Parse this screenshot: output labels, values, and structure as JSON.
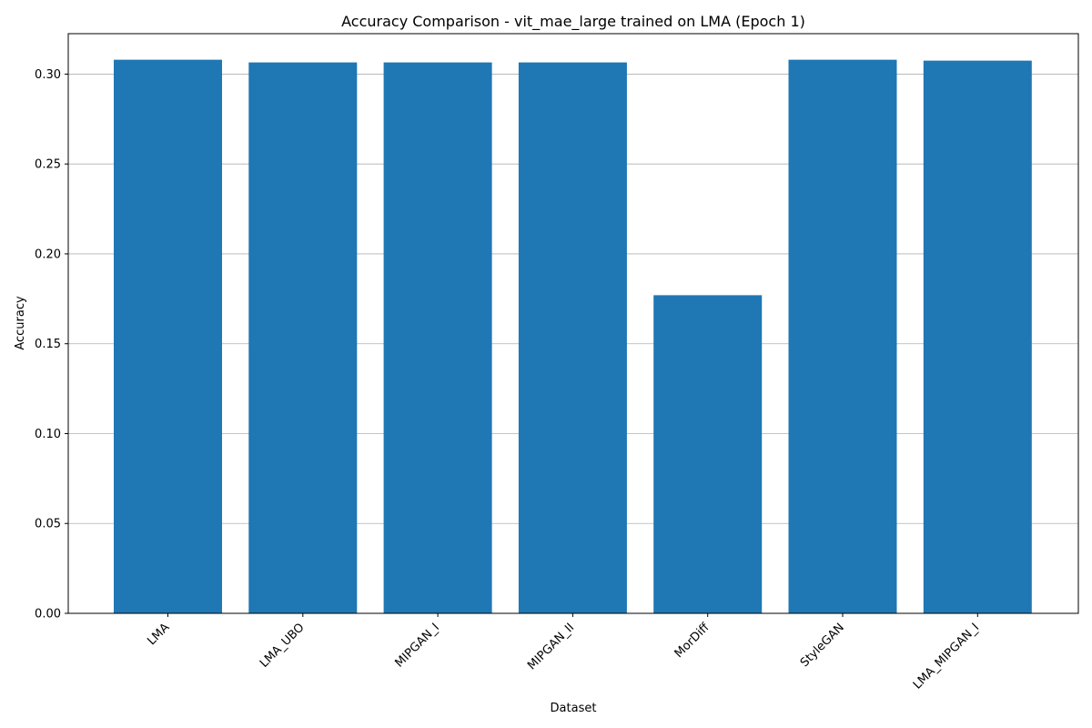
{
  "chart_data": {
    "type": "bar",
    "title": "Accuracy Comparison - vit_mae_large trained on LMA (Epoch 1)",
    "xlabel": "Dataset",
    "ylabel": "Accuracy",
    "categories": [
      "LMA",
      "LMA_UBO",
      "MIPGAN_I",
      "MIPGAN_II",
      "MorDiff",
      "StyleGAN",
      "LMA_MIPGAN_I"
    ],
    "values": [
      0.308,
      0.3065,
      0.3065,
      0.3065,
      0.177,
      0.308,
      0.3075
    ],
    "ylim": [
      0,
      0.3225
    ],
    "yticks": [
      0.0,
      0.05,
      0.1,
      0.15,
      0.2,
      0.25,
      0.3
    ],
    "ytick_labels": [
      "0.00",
      "0.05",
      "0.10",
      "0.15",
      "0.20",
      "0.25",
      "0.30"
    ],
    "grid": "y-major",
    "legend": "none",
    "bar_color": "#1f77b4",
    "grid_color": "#b0b0b0"
  }
}
